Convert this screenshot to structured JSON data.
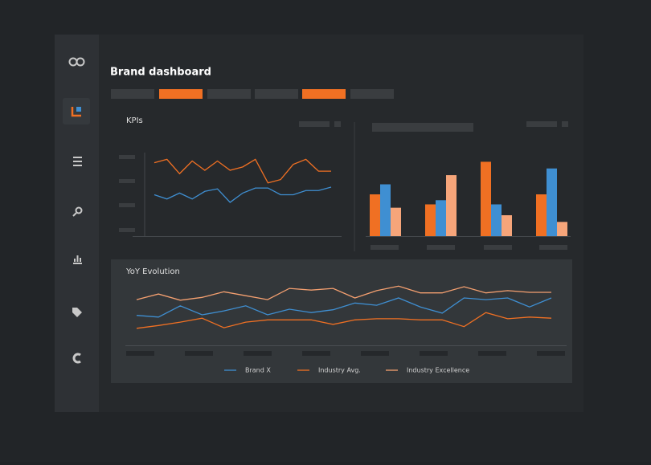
{
  "header": {
    "title": "Brand dashboard"
  },
  "kpis_title": "KPIs",
  "chart_data": [
    {
      "type": "line",
      "ylim": [
        0,
        100
      ],
      "series": [
        {
          "color": "#f07023",
          "values": [
            88,
            92,
            75,
            90,
            79,
            90,
            79,
            83,
            92,
            64,
            68,
            86,
            92,
            78,
            78
          ]
        },
        {
          "color": "#3f8fd2",
          "values": [
            50,
            45,
            52,
            45,
            54,
            57,
            41,
            52,
            58,
            58,
            50,
            50,
            55,
            55,
            59
          ]
        }
      ]
    },
    {
      "type": "bar",
      "ylim": [
        0,
        100
      ],
      "series": [
        {
          "color": "#f07023",
          "values": [
            50,
            38,
            89,
            50
          ]
        },
        {
          "color": "#3f8fd2",
          "values": [
            62,
            43,
            38,
            81
          ]
        },
        {
          "color": "#f6a57a",
          "values": [
            34,
            73,
            25,
            17
          ]
        }
      ]
    },
    {
      "type": "line",
      "title": "YoY Evolution",
      "ylim": [
        0,
        100
      ],
      "series": [
        {
          "name": "Brand X",
          "color": "#3f8fd2",
          "values": [
            39,
            36,
            56,
            40,
            47,
            56,
            40,
            50,
            44,
            49,
            61,
            57,
            70,
            54,
            43,
            70,
            67,
            70,
            54,
            70
          ]
        },
        {
          "name": "Industry Avg.",
          "color": "#f07023",
          "values": [
            16,
            21,
            27,
            34,
            17,
            27,
            31,
            31,
            31,
            23,
            31,
            33,
            33,
            31,
            31,
            19,
            44,
            33,
            36,
            34
          ]
        },
        {
          "name": "Industry Excellence",
          "color": "#f5a070",
          "values": [
            67,
            77,
            66,
            71,
            81,
            74,
            67,
            87,
            84,
            87,
            70,
            83,
            91,
            79,
            79,
            90,
            79,
            83,
            80,
            80
          ]
        }
      ]
    }
  ]
}
